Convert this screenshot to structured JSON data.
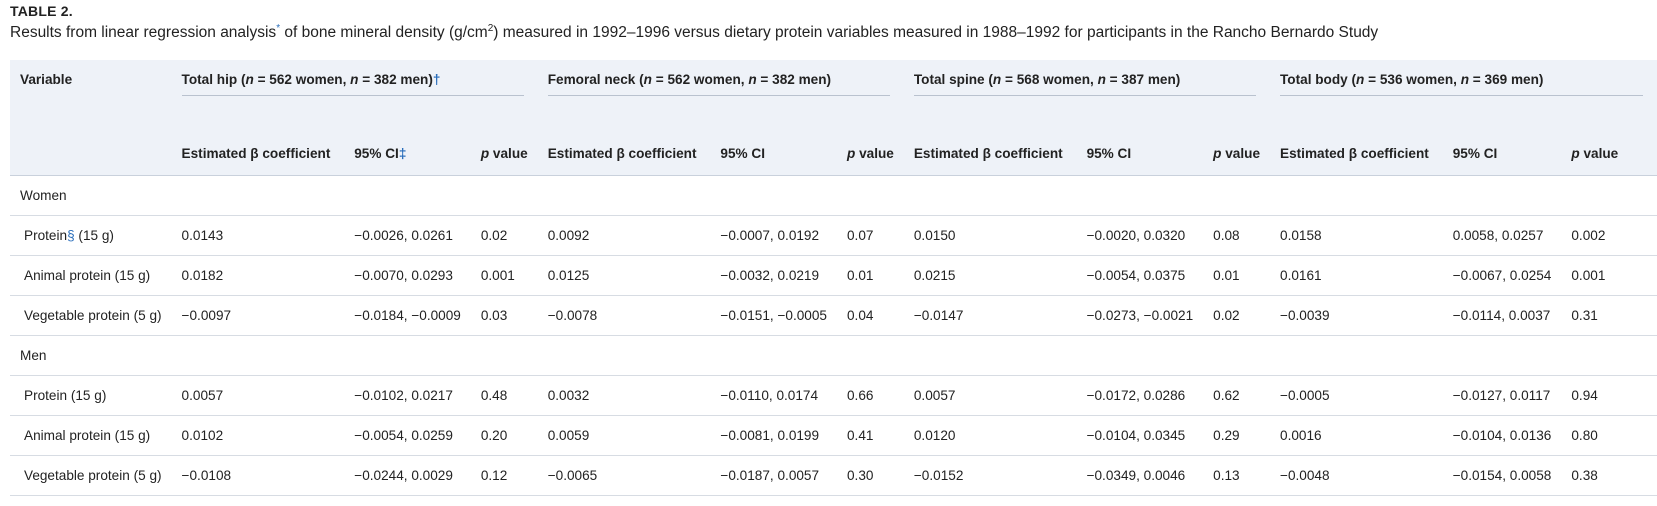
{
  "table_label": "TABLE 2.",
  "caption": {
    "pre": "Results from linear regression analysis",
    "sup1": "*",
    "mid": " of bone mineral density (g/cm",
    "sup2": "2",
    "post": ") measured in 1992–1996 versus dietary protein variables measured in 1988–1992 for participants in the Rancho Bernardo Study"
  },
  "header": {
    "variable": "Variable",
    "groups": [
      {
        "name": "Total hip",
        "open": " (",
        "n1": "n",
        "women": " = 562 women, ",
        "n2": "n",
        "men": " = 382 men)",
        "mark": "†"
      },
      {
        "name": "Femoral neck",
        "open": " (",
        "n1": "n",
        "women": " = 562 women, ",
        "n2": "n",
        "men": " = 382 men)",
        "mark": ""
      },
      {
        "name": "Total spine",
        "open": " (",
        "n1": "n",
        "women": " = 568 women, ",
        "n2": "n",
        "men": " = 387 men)",
        "mark": ""
      },
      {
        "name": "Total body",
        "open": " (",
        "n1": "n",
        "women": " = 536 women, ",
        "n2": "n",
        "men": " = 369 men)",
        "mark": ""
      }
    ],
    "sub": [
      {
        "beta": "Estimated β coefficient",
        "ci": "95% CI",
        "ci_mark": "‡",
        "p_italic": "p",
        "p_rest": " value"
      },
      {
        "beta": "Estimated β coefficient",
        "ci": "95% CI",
        "ci_mark": "",
        "p_italic": "p",
        "p_rest": " value"
      },
      {
        "beta": "Estimated β coefficient",
        "ci": "95% CI",
        "ci_mark": "",
        "p_italic": "p",
        "p_rest": " value"
      },
      {
        "beta": "Estimated β coefficient",
        "ci": "95% CI",
        "ci_mark": "",
        "p_italic": "p",
        "p_rest": " value"
      }
    ]
  },
  "sections": [
    {
      "title": "Women",
      "rows": [
        {
          "label": "Protein",
          "mark": "§",
          "label_rest": " (15 g)",
          "values": [
            "0.0143",
            "−0.0026, 0.0261",
            "0.02",
            "0.0092",
            "−0.0007, 0.0192",
            "0.07",
            "0.0150",
            "−0.0020, 0.0320",
            "0.08",
            "0.0158",
            "0.0058, 0.0257",
            "0.002"
          ]
        },
        {
          "label": "Animal protein (15 g)",
          "mark": "",
          "label_rest": "",
          "values": [
            "0.0182",
            "−0.0070, 0.0293",
            "0.001",
            "0.0125",
            "−0.0032, 0.0219",
            "0.01",
            "0.0215",
            "−0.0054, 0.0375",
            "0.01",
            "0.0161",
            "−0.0067, 0.0254",
            "0.001"
          ]
        },
        {
          "label": "Vegetable protein (5 g)",
          "mark": "",
          "label_rest": "",
          "values": [
            "−0.0097",
            "−0.0184, −0.0009",
            "0.03",
            "−0.0078",
            "−0.0151, −0.0005",
            "0.04",
            "−0.0147",
            "−0.0273, −0.0021",
            "0.02",
            "−0.0039",
            "−0.0114, 0.0037",
            "0.31"
          ]
        }
      ]
    },
    {
      "title": "Men",
      "rows": [
        {
          "label": "Protein (15 g)",
          "mark": "",
          "label_rest": "",
          "values": [
            "0.0057",
            "−0.0102, 0.0217",
            "0.48",
            "0.0032",
            "−0.0110, 0.0174",
            "0.66",
            "0.0057",
            "−0.0172, 0.0286",
            "0.62",
            "−0.0005",
            "−0.0127, 0.0117",
            "0.94"
          ]
        },
        {
          "label": "Animal protein (15 g)",
          "mark": "",
          "label_rest": "",
          "values": [
            "0.0102",
            "−0.0054, 0.0259",
            "0.20",
            "0.0059",
            "−0.0081, 0.0199",
            "0.41",
            "0.0120",
            "−0.0104, 0.0345",
            "0.29",
            "0.0016",
            "−0.0104, 0.0136",
            "0.80"
          ]
        },
        {
          "label": "Vegetable protein (5 g)",
          "mark": "",
          "label_rest": "",
          "values": [
            "−0.0108",
            "−0.0244, 0.0029",
            "0.12",
            "−0.0065",
            "−0.0187, 0.0057",
            "0.30",
            "−0.0152",
            "−0.0349, 0.0046",
            "0.13",
            "−0.0048",
            "−0.0154, 0.0058",
            "0.38"
          ]
        }
      ]
    }
  ]
}
